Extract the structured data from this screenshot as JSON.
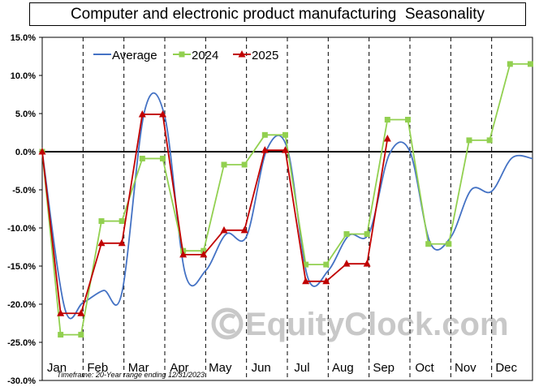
{
  "chart_data": {
    "type": "line",
    "title": "Computer and electronic product manufacturing  Seasonality",
    "categories": [
      "Jan",
      "Feb",
      "Mar",
      "Apr",
      "May",
      "Jun",
      "Jul",
      "Aug",
      "Sep",
      "Oct",
      "Nov",
      "Dec"
    ],
    "ylim": [
      -30,
      15
    ],
    "yticks": [
      15,
      10,
      5,
      0,
      -5,
      -10,
      -15,
      -20,
      -25,
      -30
    ],
    "ytick_labels": [
      "15.0%",
      "10.0%",
      "5.0%",
      "0.0%",
      "-5.0%",
      "-10.0%",
      "-15.0%",
      "-20.0%",
      "-25.0%",
      "-30.0%"
    ],
    "grid": "dashed vertical month separators",
    "legend_position": "top-left",
    "series": [
      {
        "name": "Average",
        "color": "#4472c4",
        "marker": "none",
        "points": [
          [
            0,
            0
          ],
          [
            0.55,
            -20.5
          ],
          [
            1.0,
            -19.8
          ],
          [
            1.5,
            -18.2
          ],
          [
            1.95,
            -18.5
          ],
          [
            2.5,
            5.2
          ],
          [
            3.0,
            4.6
          ],
          [
            3.5,
            -16.0
          ],
          [
            4.0,
            -15.6
          ],
          [
            4.5,
            -10.8
          ],
          [
            5.0,
            -11.1
          ],
          [
            5.5,
            0.3
          ],
          [
            6.0,
            0.4
          ],
          [
            6.5,
            -16.5
          ],
          [
            7.0,
            -15.6
          ],
          [
            7.5,
            -11.0
          ],
          [
            8.0,
            -10.7
          ],
          [
            8.5,
            -0.3
          ],
          [
            9.0,
            0.0
          ],
          [
            9.5,
            -12.0
          ],
          [
            10.0,
            -11.2
          ],
          [
            10.5,
            -5.0
          ],
          [
            11.0,
            -5.2
          ],
          [
            11.5,
            -0.8
          ],
          [
            12.0,
            -0.9
          ]
        ]
      },
      {
        "name": "2024",
        "color": "#92d050",
        "marker": "square",
        "points": [
          [
            0,
            0
          ],
          [
            0.45,
            -24.0
          ],
          [
            0.95,
            -24.0
          ],
          [
            1.45,
            -9.1
          ],
          [
            1.95,
            -9.1
          ],
          [
            2.45,
            -0.9
          ],
          [
            2.95,
            -0.9
          ],
          [
            3.45,
            -13.0
          ],
          [
            3.95,
            -13.0
          ],
          [
            4.45,
            -1.7
          ],
          [
            4.95,
            -1.7
          ],
          [
            5.45,
            2.2
          ],
          [
            5.95,
            2.2
          ],
          [
            6.45,
            -14.8
          ],
          [
            6.95,
            -14.8
          ],
          [
            7.45,
            -10.8
          ],
          [
            7.95,
            -10.8
          ],
          [
            8.45,
            4.2
          ],
          [
            8.95,
            4.2
          ],
          [
            9.45,
            -12.1
          ],
          [
            9.95,
            -12.1
          ],
          [
            10.45,
            1.5
          ],
          [
            10.95,
            1.5
          ],
          [
            11.45,
            11.5
          ],
          [
            11.95,
            11.5
          ]
        ]
      },
      {
        "name": "2025",
        "color": "#c00000",
        "marker": "triangle",
        "points": [
          [
            0,
            0
          ],
          [
            0.45,
            -21.2
          ],
          [
            0.95,
            -21.2
          ],
          [
            1.45,
            -12.0
          ],
          [
            1.95,
            -12.0
          ],
          [
            2.45,
            4.9
          ],
          [
            2.95,
            4.9
          ],
          [
            3.45,
            -13.5
          ],
          [
            3.95,
            -13.5
          ],
          [
            4.45,
            -10.3
          ],
          [
            4.95,
            -10.3
          ],
          [
            5.45,
            0.2
          ],
          [
            5.95,
            0.2
          ],
          [
            6.45,
            -17.0
          ],
          [
            6.95,
            -17.0
          ],
          [
            7.45,
            -14.7
          ],
          [
            7.95,
            -14.7
          ],
          [
            8.45,
            1.7
          ]
        ]
      }
    ],
    "footnote": "Timeframe: 20-Year range ending 12/31/2023",
    "watermark": "EquityClock.com"
  }
}
